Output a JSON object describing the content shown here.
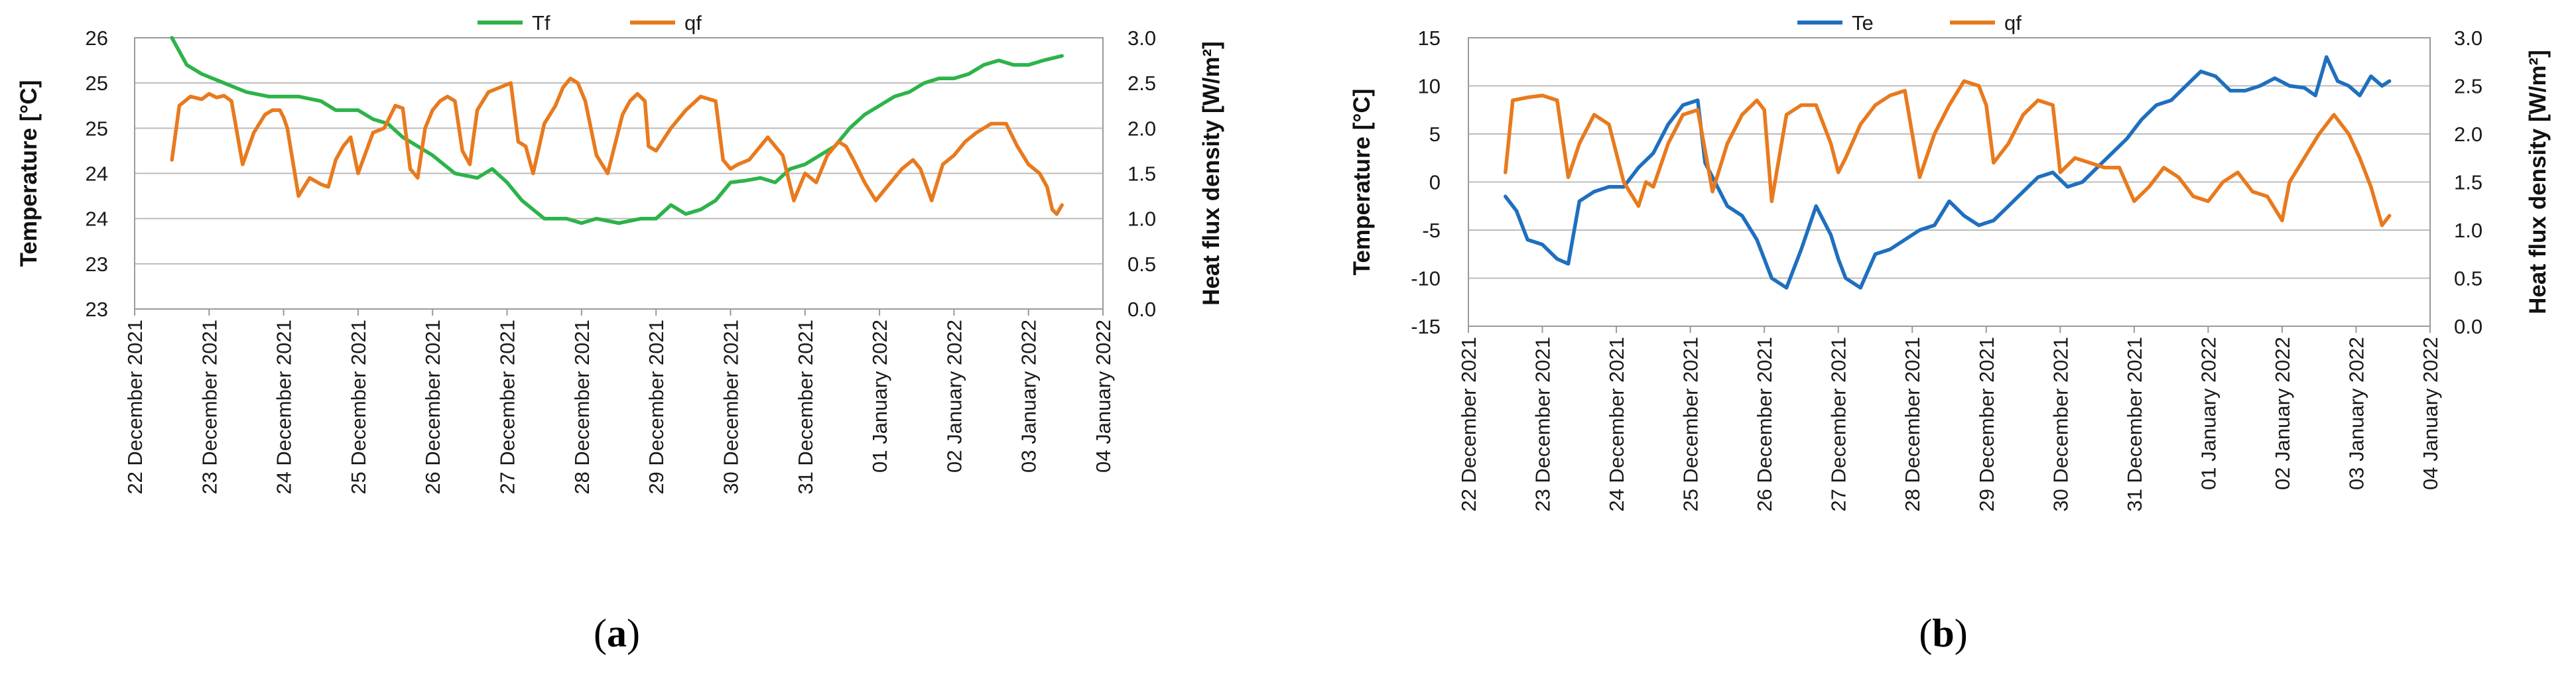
{
  "chart_data": [
    {
      "type": "line",
      "panel_label": "a",
      "ylabel_left": "Temperature [°C]",
      "ylabel_right": "Heat flux density [W/m²]",
      "left_ticks": [
        "26",
        "25",
        "25",
        "24",
        "24",
        "23",
        "23"
      ],
      "left_ylim": [
        22.5,
        25.5
      ],
      "right_ticks": [
        "3.0",
        "2.5",
        "2.0",
        "1.5",
        "1.0",
        "0.5",
        "0.0"
      ],
      "right_ylim": [
        0,
        3
      ],
      "x_ticks": [
        "22 December 2021",
        "23 December 2021",
        "24 December 2021",
        "25 December 2021",
        "26 December 2021",
        "27 December 2021",
        "28 December 2021",
        "29 December 2021",
        "30 December 2021",
        "31 December 2021",
        "01 January 2022",
        "02 January 2022",
        "03 January 2022",
        "04 January 2022"
      ],
      "xlim": [
        0,
        13
      ],
      "legend": [
        "Tf",
        "qf"
      ],
      "series": [
        {
          "name": "Tf",
          "axis": "left",
          "color": "#2db34a",
          "x": [
            0.5,
            0.7,
            0.9,
            1.2,
            1.5,
            1.8,
            2.2,
            2.5,
            2.7,
            3.0,
            3.2,
            3.4,
            3.6,
            4.0,
            4.3,
            4.6,
            4.8,
            5.0,
            5.2,
            5.5,
            5.8,
            6.0,
            6.2,
            6.5,
            6.8,
            7.0,
            7.2,
            7.4,
            7.6,
            7.8,
            8.0,
            8.2,
            8.4,
            8.6,
            8.8,
            9.0,
            9.2,
            9.4,
            9.6,
            9.8,
            10.0,
            10.2,
            10.4,
            10.6,
            10.8,
            11.0,
            11.2,
            11.4,
            11.6,
            11.8,
            12.0,
            12.2,
            12.45
          ],
          "y": [
            25.5,
            25.2,
            25.1,
            25.0,
            24.9,
            24.85,
            24.85,
            24.8,
            24.7,
            24.7,
            24.6,
            24.55,
            24.4,
            24.2,
            24.0,
            23.95,
            24.05,
            23.9,
            23.7,
            23.5,
            23.5,
            23.45,
            23.5,
            23.45,
            23.5,
            23.5,
            23.65,
            23.55,
            23.6,
            23.7,
            23.9,
            23.92,
            23.95,
            23.9,
            24.05,
            24.1,
            24.2,
            24.3,
            24.5,
            24.65,
            24.75,
            24.85,
            24.9,
            25.0,
            25.05,
            25.05,
            25.1,
            25.2,
            25.25,
            25.2,
            25.2,
            25.25,
            25.3
          ]
        },
        {
          "name": "qf",
          "axis": "right",
          "color": "#e87a1e",
          "x": [
            0.5,
            0.6,
            0.75,
            0.9,
            1.0,
            1.1,
            1.2,
            1.3,
            1.45,
            1.6,
            1.75,
            1.85,
            1.95,
            2.0,
            2.05,
            2.2,
            2.35,
            2.5,
            2.6,
            2.7,
            2.8,
            2.9,
            3.0,
            3.2,
            3.35,
            3.5,
            3.6,
            3.7,
            3.8,
            3.9,
            4.0,
            4.1,
            4.2,
            4.3,
            4.4,
            4.5,
            4.6,
            4.75,
            4.9,
            5.05,
            5.15,
            5.25,
            5.35,
            5.5,
            5.65,
            5.75,
            5.85,
            5.95,
            6.05,
            6.2,
            6.35,
            6.55,
            6.65,
            6.75,
            6.85,
            6.9,
            7.0,
            7.2,
            7.4,
            7.6,
            7.8,
            7.9,
            8.0,
            8.1,
            8.25,
            8.4,
            8.5,
            8.6,
            8.7,
            8.85,
            9.0,
            9.15,
            9.3,
            9.45,
            9.55,
            9.65,
            9.8,
            9.95,
            10.1,
            10.3,
            10.45,
            10.55,
            10.7,
            10.85,
            11.0,
            11.15,
            11.3,
            11.4,
            11.5,
            11.7,
            11.85,
            12.0,
            12.15,
            12.25,
            12.32,
            12.38,
            12.45
          ],
          "y": [
            1.65,
            2.25,
            2.35,
            2.32,
            2.38,
            2.34,
            2.36,
            2.3,
            1.6,
            1.95,
            2.15,
            2.2,
            2.2,
            2.12,
            2.0,
            1.25,
            1.45,
            1.38,
            1.35,
            1.65,
            1.8,
            1.9,
            1.5,
            1.95,
            2.0,
            2.25,
            2.22,
            1.55,
            1.45,
            2.0,
            2.2,
            2.3,
            2.35,
            2.3,
            1.75,
            1.6,
            2.2,
            2.4,
            2.45,
            2.5,
            1.85,
            1.8,
            1.5,
            2.05,
            2.25,
            2.45,
            2.55,
            2.5,
            2.3,
            1.7,
            1.5,
            2.15,
            2.3,
            2.38,
            2.3,
            1.8,
            1.75,
            2.0,
            2.2,
            2.35,
            2.3,
            1.65,
            1.55,
            1.6,
            1.65,
            1.8,
            1.9,
            1.8,
            1.7,
            1.2,
            1.5,
            1.4,
            1.7,
            1.85,
            1.8,
            1.65,
            1.4,
            1.2,
            1.35,
            1.55,
            1.65,
            1.55,
            1.2,
            1.6,
            1.7,
            1.85,
            1.95,
            2.0,
            2.05,
            2.05,
            1.8,
            1.6,
            1.5,
            1.35,
            1.1,
            1.05,
            1.15
          ]
        }
      ]
    },
    {
      "type": "line",
      "panel_label": "b",
      "ylabel_left": "Temperature [°C]",
      "ylabel_right": "Heat flux density [W/m²]",
      "left_ticks": [
        "15",
        "10",
        "5",
        "0",
        "-5",
        "-10",
        "-15"
      ],
      "left_ylim": [
        -15,
        15
      ],
      "right_ticks": [
        "3.0",
        "2.5",
        "2.0",
        "1.5",
        "1.0",
        "0.5",
        "0.0"
      ],
      "right_ylim": [
        0,
        3
      ],
      "x_ticks": [
        "22 December 2021",
        "23 December 2021",
        "24 December 2021",
        "25 December 2021",
        "26 December 2021",
        "27 December 2021",
        "28 December 2021",
        "29 December 2021",
        "30 December 2021",
        "31 December 2021",
        "01 January 2022",
        "02 January 2022",
        "03 January 2022",
        "04 January 2022"
      ],
      "xlim": [
        0,
        13
      ],
      "legend": [
        "Te",
        "qf"
      ],
      "series": [
        {
          "name": "Te",
          "axis": "left",
          "color": "#1f6fbe",
          "x": [
            0.5,
            0.65,
            0.8,
            1.0,
            1.2,
            1.35,
            1.5,
            1.7,
            1.9,
            2.1,
            2.3,
            2.5,
            2.7,
            2.9,
            3.1,
            3.2,
            3.3,
            3.5,
            3.7,
            3.9,
            4.1,
            4.3,
            4.5,
            4.7,
            4.9,
            5.0,
            5.1,
            5.3,
            5.5,
            5.7,
            5.9,
            6.1,
            6.3,
            6.5,
            6.7,
            6.9,
            7.1,
            7.3,
            7.5,
            7.7,
            7.9,
            8.1,
            8.3,
            8.5,
            8.7,
            8.9,
            9.1,
            9.3,
            9.5,
            9.7,
            9.9,
            10.1,
            10.3,
            10.5,
            10.7,
            10.9,
            11.1,
            11.3,
            11.45,
            11.6,
            11.75,
            11.9,
            12.05,
            12.2,
            12.35,
            12.45
          ],
          "y": [
            -1.5,
            -3.0,
            -6.0,
            -6.5,
            -8.0,
            -8.5,
            -2.0,
            -1.0,
            -0.5,
            -0.5,
            1.5,
            3.0,
            6.0,
            8.0,
            8.5,
            2.0,
            0.5,
            -2.5,
            -3.5,
            -6.0,
            -10.0,
            -11.0,
            -7.0,
            -2.5,
            -5.5,
            -8.0,
            -10.0,
            -11.0,
            -7.5,
            -7.0,
            -6.0,
            -5.0,
            -4.5,
            -2.0,
            -3.5,
            -4.5,
            -4.0,
            -2.5,
            -1.0,
            0.5,
            1.0,
            -0.5,
            0.0,
            1.5,
            3.0,
            4.5,
            6.5,
            8.0,
            8.5,
            10.0,
            11.5,
            11.0,
            9.5,
            9.5,
            10.0,
            10.8,
            10.0,
            9.8,
            9.0,
            13.0,
            10.5,
            10.0,
            9.0,
            11.0,
            10.0,
            10.5
          ]
        },
        {
          "name": "qf",
          "axis": "right",
          "color": "#e87a1e",
          "x": [
            0.5,
            0.6,
            0.8,
            1.0,
            1.2,
            1.35,
            1.5,
            1.7,
            1.9,
            2.1,
            2.3,
            2.4,
            2.5,
            2.7,
            2.9,
            3.1,
            3.3,
            3.5,
            3.7,
            3.9,
            4.0,
            4.1,
            4.3,
            4.5,
            4.7,
            4.9,
            5.0,
            5.1,
            5.3,
            5.5,
            5.7,
            5.9,
            6.1,
            6.3,
            6.5,
            6.7,
            6.9,
            7.0,
            7.1,
            7.3,
            7.5,
            7.7,
            7.9,
            8.0,
            8.2,
            8.4,
            8.6,
            8.8,
            9.0,
            9.2,
            9.4,
            9.6,
            9.8,
            10.0,
            10.2,
            10.4,
            10.6,
            10.8,
            11.0,
            11.1,
            11.3,
            11.5,
            11.7,
            11.9,
            12.05,
            12.2,
            12.35,
            12.45
          ],
          "y": [
            1.6,
            2.35,
            2.38,
            2.4,
            2.35,
            1.55,
            1.9,
            2.2,
            2.1,
            1.5,
            1.25,
            1.5,
            1.45,
            1.9,
            2.2,
            2.25,
            1.4,
            1.9,
            2.2,
            2.35,
            2.25,
            1.3,
            2.2,
            2.3,
            2.3,
            1.9,
            1.6,
            1.75,
            2.1,
            2.3,
            2.4,
            2.45,
            1.55,
            2.0,
            2.3,
            2.55,
            2.5,
            2.3,
            1.7,
            1.9,
            2.2,
            2.35,
            2.3,
            1.6,
            1.75,
            1.7,
            1.65,
            1.65,
            1.3,
            1.45,
            1.65,
            1.55,
            1.35,
            1.3,
            1.5,
            1.6,
            1.4,
            1.35,
            1.1,
            1.5,
            1.75,
            2.0,
            2.2,
            2.0,
            1.75,
            1.45,
            1.05,
            1.15
          ]
        }
      ]
    }
  ]
}
